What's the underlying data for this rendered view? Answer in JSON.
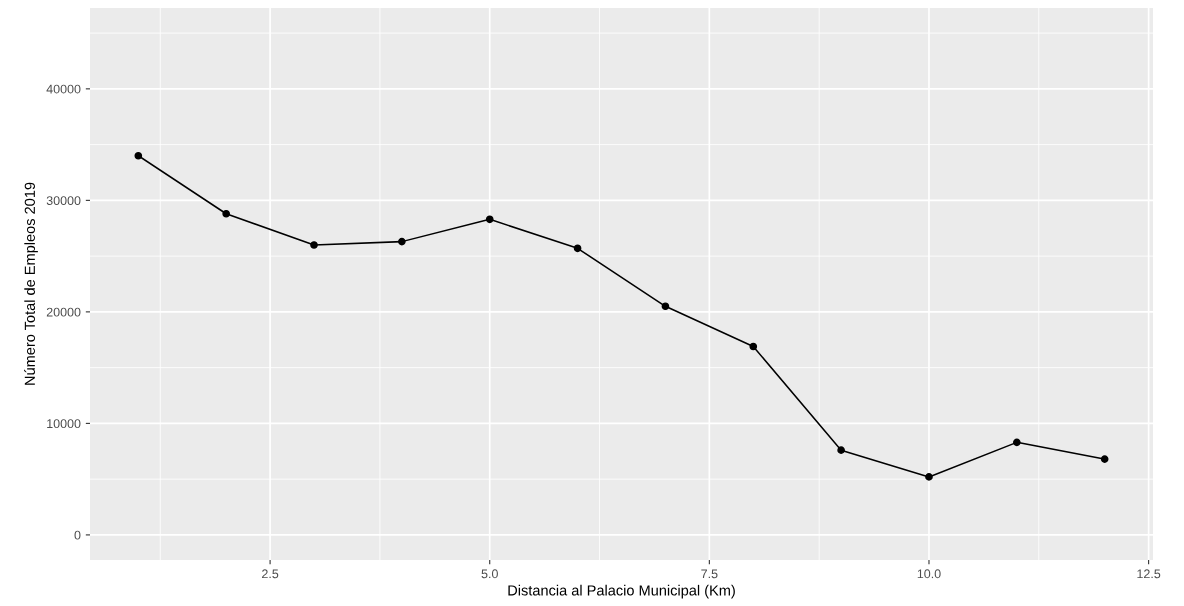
{
  "chart_data": {
    "type": "line",
    "xlabel": "Distancia al Palacio Municipal (Km)",
    "ylabel": "Número Total de Empleos 2019",
    "x": [
      1,
      2,
      3,
      4,
      5,
      6,
      7,
      8,
      9,
      10,
      11,
      12
    ],
    "series": [
      {
        "color": "#000000",
        "values": [
          34000,
          28800,
          26000,
          26300,
          28300,
          25700,
          20500,
          16900,
          7600,
          5200,
          8300,
          6800
        ]
      }
    ],
    "xlim": [
      0.45,
      12.55
    ],
    "xticks": [
      {
        "value": 2.5,
        "label": "2.5"
      },
      {
        "value": 5,
        "label": "5.0"
      },
      {
        "value": 7.5,
        "label": "7.5"
      },
      {
        "value": 10,
        "label": "10.0"
      },
      {
        "value": 12.5,
        "label": "12.5"
      }
    ],
    "ylim": [
      -2250,
      47250
    ],
    "yticks": [
      0,
      10000,
      20000,
      30000,
      40000
    ],
    "grid": true,
    "marker": "circle",
    "line_style": "solid",
    "legend": false
  }
}
